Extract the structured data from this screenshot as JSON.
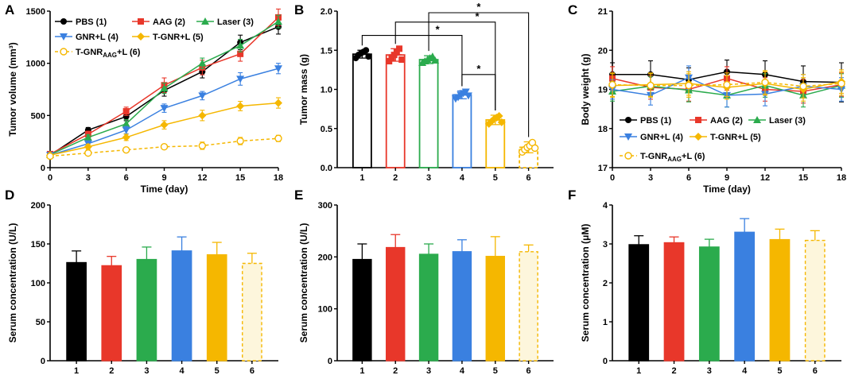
{
  "panels": [
    {
      "id": "A",
      "type": "line",
      "label": "A",
      "xlabel": "Time (day)",
      "ylabel": "Tumor volume (mm³)",
      "xlim": [
        0,
        18
      ],
      "ylim": [
        0,
        1500
      ],
      "xticks": [
        0,
        3,
        6,
        9,
        12,
        15,
        18
      ],
      "yticks": [
        0,
        500,
        1000,
        1500
      ],
      "x": [
        0,
        3,
        6,
        9,
        12,
        15,
        18
      ],
      "series": [
        {
          "name": "PBS (1)",
          "color": "#000000",
          "marker": "circle",
          "dashed": false,
          "values": [
            120,
            360,
            490,
            740,
            920,
            1200,
            1350
          ],
          "err": [
            20,
            25,
            40,
            55,
            60,
            70,
            70
          ]
        },
        {
          "name": "AAG (2)",
          "color": "#e8372a",
          "marker": "square",
          "dashed": false,
          "values": [
            130,
            320,
            540,
            790,
            960,
            1090,
            1440
          ],
          "err": [
            20,
            30,
            40,
            70,
            70,
            70,
            80
          ]
        },
        {
          "name": "Laser (3)",
          "color": "#2bab4d",
          "marker": "triangle-up",
          "dashed": false,
          "values": [
            125,
            290,
            420,
            760,
            1000,
            1170,
            1400
          ],
          "err": [
            20,
            25,
            40,
            50,
            50,
            60,
            60
          ]
        },
        {
          "name": "GNR+L (4)",
          "color": "#3a80e0",
          "marker": "triangle-down",
          "dashed": false,
          "values": [
            120,
            230,
            360,
            570,
            690,
            850,
            950
          ],
          "err": [
            15,
            25,
            35,
            40,
            40,
            60,
            50
          ]
        },
        {
          "name": "T-GNR+L (5)",
          "color": "#f5b700",
          "marker": "diamond",
          "dashed": false,
          "values": [
            120,
            200,
            290,
            410,
            500,
            590,
            620
          ],
          "err": [
            15,
            25,
            30,
            40,
            50,
            45,
            50
          ]
        },
        {
          "name": "T-GNR",
          "sub": "AAG",
          "suffix": "+L (6)",
          "color": "#f5b700",
          "marker": "open-circle",
          "dashed": true,
          "values": [
            110,
            140,
            170,
            200,
            210,
            255,
            280
          ],
          "err": [
            10,
            15,
            20,
            20,
            35,
            35,
            30
          ]
        }
      ]
    },
    {
      "id": "B",
      "type": "bar",
      "label": "B",
      "ylabel": "Tumor mass (g)",
      "ylim": [
        0,
        2.0
      ],
      "yticks": [
        "0.0",
        "0.5",
        "1.0",
        "1.5",
        "2.0"
      ],
      "categories": [
        "1",
        "2",
        "3",
        "4",
        "5",
        "6"
      ],
      "values": [
        1.45,
        1.44,
        1.38,
        0.93,
        0.61,
        0.26
      ],
      "err": [
        0.05,
        0.08,
        0.05,
        0.05,
        0.06,
        0.07
      ],
      "colors": [
        "#000000",
        "#e8372a",
        "#2bab4d",
        "#3a80e0",
        "#f5b700",
        "#f5b700"
      ],
      "markers": [
        "circle",
        "square",
        "triangle-up",
        "triangle-down",
        "diamond",
        "open-circle"
      ],
      "dashed_last": true,
      "points": [
        [
          1.4,
          1.44,
          1.46,
          1.48,
          1.5,
          1.42
        ],
        [
          1.36,
          1.4,
          1.44,
          1.48,
          1.52,
          1.38
        ],
        [
          1.34,
          1.36,
          1.38,
          1.4,
          1.42,
          1.37
        ],
        [
          0.88,
          0.9,
          0.93,
          0.95,
          0.97,
          0.92
        ],
        [
          0.56,
          0.59,
          0.62,
          0.64,
          0.66,
          0.58
        ],
        [
          0.2,
          0.23,
          0.26,
          0.28,
          0.32,
          0.25
        ]
      ],
      "significance": [
        {
          "from": 1,
          "to": 4,
          "label": "*"
        },
        {
          "from": 2,
          "to": 5,
          "label": "*"
        },
        {
          "from": 3,
          "to": 6,
          "label": "*"
        },
        {
          "from": 4,
          "to": 5,
          "label": "*"
        }
      ]
    },
    {
      "id": "C",
      "type": "line",
      "label": "C",
      "xlabel": "Time (day)",
      "ylabel": "Body weight (g)",
      "xlim": [
        0,
        18
      ],
      "ylim": [
        17,
        21
      ],
      "xticks": [
        0,
        3,
        6,
        9,
        12,
        15,
        18
      ],
      "yticks": [
        17,
        18,
        19,
        20,
        21
      ],
      "x": [
        0,
        3,
        6,
        9,
        12,
        15,
        18
      ],
      "series": [
        {
          "name": "PBS (1)",
          "color": "#000000",
          "marker": "circle",
          "dashed": false,
          "values": [
            19.38,
            19.38,
            19.25,
            19.45,
            19.38,
            19.2,
            19.18
          ],
          "err": [
            0.3,
            0.35,
            0.3,
            0.3,
            0.35,
            0.4,
            0.5
          ]
        },
        {
          "name": "AAG (2)",
          "color": "#e8372a",
          "marker": "square",
          "dashed": false,
          "values": [
            19.28,
            19.05,
            19.0,
            19.28,
            19.0,
            18.95,
            19.12
          ],
          "err": [
            0.3,
            0.3,
            0.3,
            0.3,
            0.3,
            0.3,
            0.3
          ]
        },
        {
          "name": "Laser (3)",
          "color": "#2bab4d",
          "marker": "triangle-up",
          "dashed": false,
          "values": [
            18.95,
            19.08,
            18.98,
            18.85,
            19.1,
            18.85,
            19.1
          ],
          "err": [
            0.25,
            0.25,
            0.3,
            0.3,
            0.3,
            0.3,
            0.3
          ]
        },
        {
          "name": "GNR+L (4)",
          "color": "#3a80e0",
          "marker": "triangle-down",
          "dashed": false,
          "values": [
            19.0,
            18.85,
            19.3,
            18.85,
            18.88,
            19.08,
            19.0
          ],
          "err": [
            0.25,
            0.25,
            0.3,
            0.3,
            0.3,
            0.3,
            0.3
          ]
        },
        {
          "name": "T-GNR+L (5)",
          "color": "#f5b700",
          "marker": "diamond",
          "dashed": false,
          "values": [
            19.1,
            19.12,
            19.15,
            19.05,
            19.15,
            19.0,
            19.2
          ],
          "err": [
            0.3,
            0.3,
            0.3,
            0.3,
            0.3,
            0.3,
            0.3
          ]
        },
        {
          "name": "T-GNR",
          "sub": "AAG",
          "suffix": "+L (6)",
          "color": "#f5b700",
          "marker": "open-circle",
          "dashed": true,
          "values": [
            19.12,
            19.1,
            19.1,
            19.12,
            19.18,
            19.08,
            19.15
          ],
          "err": [
            0.3,
            0.3,
            0.3,
            0.3,
            0.3,
            0.3,
            0.3
          ]
        }
      ]
    },
    {
      "id": "D",
      "type": "bar",
      "label": "D",
      "ylabel": "Serum concentration (U/L)",
      "ylim": [
        0,
        200
      ],
      "yticks": [
        "0",
        "50",
        "100",
        "150",
        "200"
      ],
      "categories": [
        "1",
        "2",
        "3",
        "4",
        "5",
        "6"
      ],
      "values": [
        126,
        122,
        130,
        141,
        136,
        125
      ],
      "err": [
        15,
        12,
        16,
        18,
        16,
        13
      ],
      "colors": [
        "#000000",
        "#e8372a",
        "#2bab4d",
        "#3a80e0",
        "#f5b700",
        "#f5b700"
      ],
      "dashed_last": true
    },
    {
      "id": "E",
      "type": "bar",
      "label": "E",
      "ylabel": "Serum concentration (U/L)",
      "ylim": [
        0,
        300
      ],
      "yticks": [
        "0",
        "100",
        "200",
        "300"
      ],
      "categories": [
        "1",
        "2",
        "3",
        "4",
        "5",
        "6"
      ],
      "values": [
        195,
        218,
        205,
        210,
        201,
        210
      ],
      "err": [
        30,
        25,
        20,
        23,
        38,
        13
      ],
      "colors": [
        "#000000",
        "#e8372a",
        "#2bab4d",
        "#3a80e0",
        "#f5b700",
        "#f5b700"
      ],
      "dashed_last": true
    },
    {
      "id": "F",
      "type": "bar",
      "label": "F",
      "ylabel": "Serum concentration (μM)",
      "ylim": [
        0,
        4
      ],
      "yticks": [
        "0",
        "1",
        "2",
        "3",
        "4"
      ],
      "categories": [
        "1",
        "2",
        "3",
        "4",
        "5",
        "6"
      ],
      "values": [
        2.98,
        3.03,
        2.92,
        3.3,
        3.11,
        3.09
      ],
      "err": [
        0.23,
        0.15,
        0.2,
        0.35,
        0.27,
        0.25
      ],
      "colors": [
        "#000000",
        "#e8372a",
        "#2bab4d",
        "#3a80e0",
        "#f5b700",
        "#f5b700"
      ],
      "dashed_last": true
    }
  ]
}
